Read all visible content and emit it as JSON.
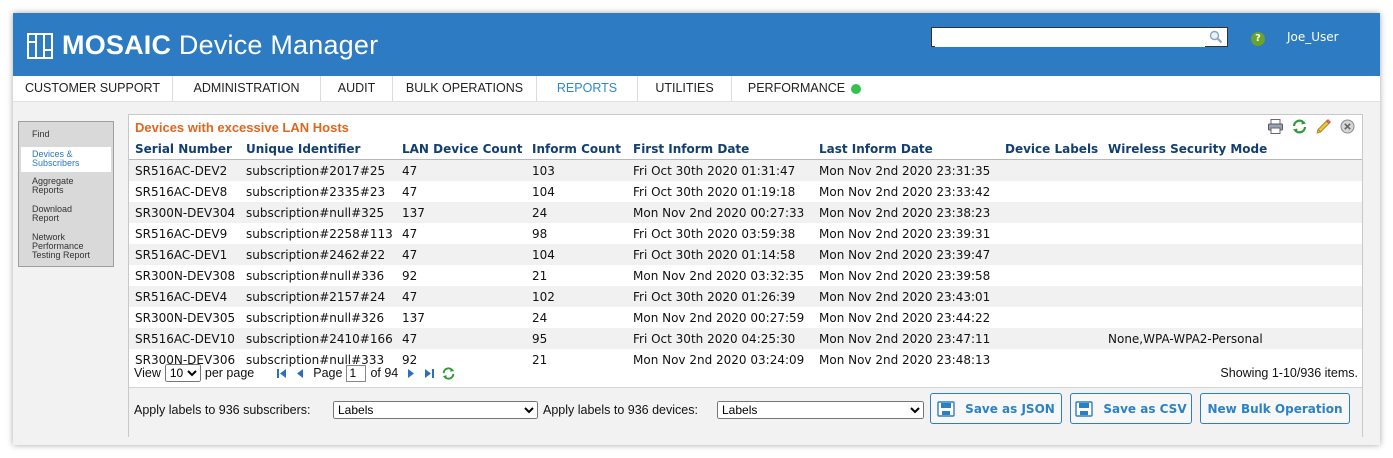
{
  "app": {
    "brand_bold": "MOSAIC",
    "brand_rest": "Device Manager",
    "search_value": "",
    "username": "Joe_User",
    "help_glyph": "?"
  },
  "nav": [
    {
      "label": "CUSTOMER SUPPORT",
      "active": false
    },
    {
      "label": "ADMINISTRATION",
      "active": false
    },
    {
      "label": "AUDIT",
      "active": false
    },
    {
      "label": "BULK OPERATIONS",
      "active": false
    },
    {
      "label": "REPORTS",
      "active": true
    },
    {
      "label": "UTILITIES",
      "active": false
    },
    {
      "label": "PERFORMANCE",
      "active": false,
      "status_color": "#33c24a"
    }
  ],
  "sidebar": [
    {
      "lines": [
        "Find"
      ],
      "active": false
    },
    {
      "lines": [
        "Devices &",
        "Subscribers"
      ],
      "active": true
    },
    {
      "lines": [
        "Aggregate",
        "Reports"
      ],
      "active": false
    },
    {
      "lines": [
        "Download",
        "Report"
      ],
      "active": false
    },
    {
      "lines": [
        "Network",
        "Performance",
        "Testing Report"
      ],
      "active": false
    }
  ],
  "report": {
    "title": "Devices with excessive LAN Hosts",
    "tools": [
      "print-icon",
      "refresh-icon",
      "edit-icon",
      "close-icon"
    ],
    "columns": [
      "Serial Number",
      "Unique Identifier",
      "LAN Device Count",
      "Inform Count",
      "First Inform Date",
      "Last Inform Date",
      "Device Labels",
      "Wireless Security Mode"
    ],
    "rows": [
      [
        "SR516AC-DEV2",
        "subscription#2017#25",
        "47",
        "103",
        "Fri Oct 30th 2020 01:31:47",
        "Mon Nov 2nd 2020 23:31:35",
        "",
        ""
      ],
      [
        "SR516AC-DEV8",
        "subscription#2335#23",
        "47",
        "104",
        "Fri Oct 30th 2020 01:19:18",
        "Mon Nov 2nd 2020 23:33:42",
        "",
        ""
      ],
      [
        "SR300N-DEV304",
        "subscription#null#325",
        "137",
        "24",
        "Mon Nov 2nd 2020 00:27:33",
        "Mon Nov 2nd 2020 23:38:23",
        "",
        ""
      ],
      [
        "SR516AC-DEV9",
        "subscription#2258#113",
        "47",
        "98",
        "Fri Oct 30th 2020 03:59:38",
        "Mon Nov 2nd 2020 23:39:31",
        "",
        ""
      ],
      [
        "SR516AC-DEV1",
        "subscription#2462#22",
        "47",
        "104",
        "Fri Oct 30th 2020 01:14:58",
        "Mon Nov 2nd 2020 23:39:47",
        "",
        ""
      ],
      [
        "SR300N-DEV308",
        "subscription#null#336",
        "92",
        "21",
        "Mon Nov 2nd 2020 03:32:35",
        "Mon Nov 2nd 2020 23:39:58",
        "",
        ""
      ],
      [
        "SR516AC-DEV4",
        "subscription#2157#24",
        "47",
        "102",
        "Fri Oct 30th 2020 01:26:39",
        "Mon Nov 2nd 2020 23:43:01",
        "",
        ""
      ],
      [
        "SR300N-DEV305",
        "subscription#null#326",
        "137",
        "24",
        "Mon Nov 2nd 2020 00:27:59",
        "Mon Nov 2nd 2020 23:44:22",
        "",
        ""
      ],
      [
        "SR516AC-DEV10",
        "subscription#2410#166",
        "47",
        "95",
        "Fri Oct 30th 2020 04:25:30",
        "Mon Nov 2nd 2020 23:47:11",
        "",
        "None,WPA-WPA2-Personal"
      ],
      [
        "SR300N-DEV306",
        "subscription#null#333",
        "92",
        "21",
        "Mon Nov 2nd 2020 03:24:09",
        "Mon Nov 2nd 2020 23:48:13",
        "",
        ""
      ]
    ]
  },
  "pager": {
    "view_label": "View",
    "per_page_value": "10",
    "per_page_label": "per page",
    "page_label": "Page",
    "page_value": "1",
    "of_label": "of 94",
    "showing": "Showing 1-10/936 items."
  },
  "bottom": {
    "subscribers_label": "Apply labels to 936 subscribers:",
    "subscribers_select": "Labels",
    "devices_label": "Apply labels to 936 devices:",
    "devices_select": "Labels",
    "save_json": "Save as JSON",
    "save_csv": "Save as CSV",
    "new_bulk": "New Bulk Operation"
  },
  "colors": {
    "header_blue": "#2c7bc3",
    "accent_orange": "#e0661e",
    "link_blue": "#2a8ad4"
  }
}
